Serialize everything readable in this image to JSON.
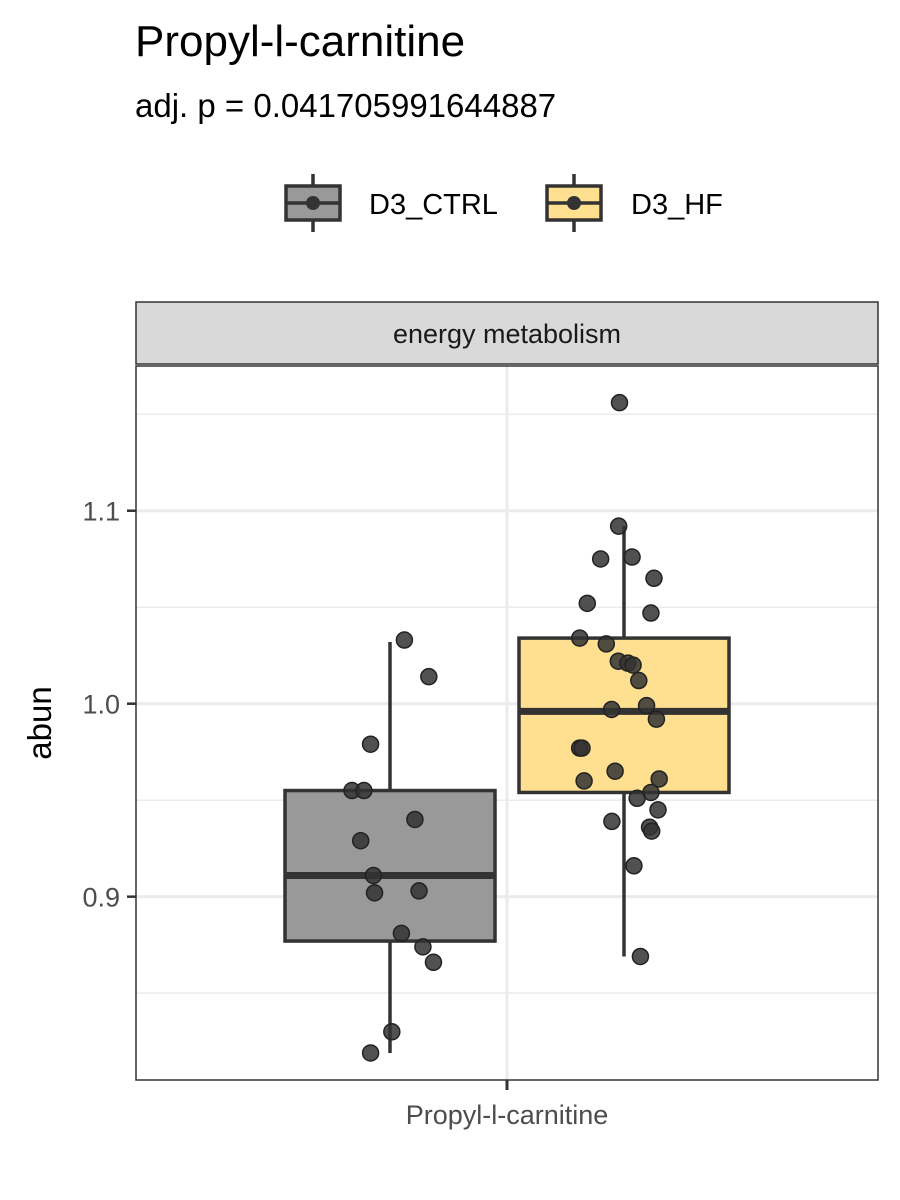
{
  "chart_data": {
    "type": "boxplot",
    "title": "Propyl-l-carnitine",
    "subtitle": "adj. p = 0.041705991644887",
    "facet_label": "energy metabolism",
    "xlabel": "",
    "ylabel": "abun",
    "x_categories": [
      "Propyl-l-carnitine"
    ],
    "y_ticks": [
      0.9,
      1.0,
      1.1
    ],
    "y_tick_labels": [
      "0.9",
      "1.0",
      "1.1"
    ],
    "ylim": [
      0.805,
      1.175
    ],
    "grid": true,
    "legend_position": "top",
    "colors": {
      "D3_CTRL": "#999999",
      "D3_HF": "#FFDF90",
      "outline": "#333333",
      "points": "#333333",
      "grid": "#ebebeb",
      "strip_fill": "#d9d9d9"
    },
    "series": [
      {
        "name": "D3_CTRL",
        "box": {
          "whisker_low": 0.819,
          "q1": 0.877,
          "median": 0.911,
          "q3": 0.955,
          "whisker_high": 1.032
        },
        "points": [
          1.033,
          1.014,
          0.979,
          0.955,
          0.955,
          0.94,
          0.929,
          0.911,
          0.903,
          0.902,
          0.881,
          0.874,
          0.866,
          0.83,
          0.819
        ]
      },
      {
        "name": "D3_HF",
        "box": {
          "whisker_low": 0.869,
          "q1": 0.954,
          "median": 0.996,
          "q3": 1.034,
          "whisker_high": 1.092
        },
        "points": [
          1.156,
          1.092,
          1.076,
          1.075,
          1.065,
          1.052,
          1.047,
          1.034,
          1.031,
          1.022,
          1.021,
          1.02,
          1.012,
          0.999,
          0.997,
          0.992,
          0.977,
          0.977,
          0.965,
          0.961,
          0.96,
          0.954,
          0.951,
          0.945,
          0.939,
          0.936,
          0.934,
          0.916,
          0.869
        ]
      }
    ]
  }
}
